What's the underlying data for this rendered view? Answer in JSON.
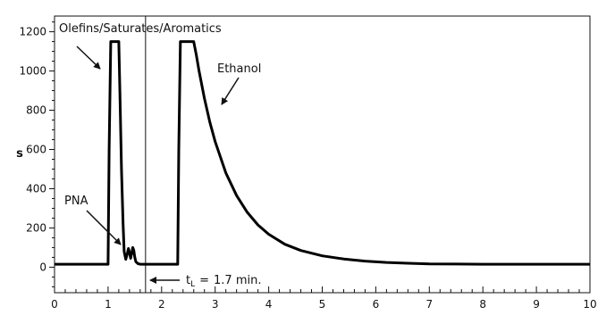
{
  "chart_data": {
    "type": "line",
    "title": "",
    "xlabel": "",
    "ylabel": "s",
    "xlim": [
      0,
      10
    ],
    "ylim": [
      -130,
      1280
    ],
    "x_ticks": [
      0,
      1,
      2,
      3,
      4,
      5,
      6,
      7,
      8,
      9,
      10
    ],
    "y_ticks": [
      0,
      200,
      400,
      600,
      800,
      1000,
      1200
    ],
    "grid": false,
    "series": [
      {
        "name": "",
        "x": [
          0,
          1.0,
          1.02,
          1.05,
          1.2,
          1.22,
          1.25,
          1.28,
          1.3,
          1.33,
          1.36,
          1.38,
          1.4,
          1.42,
          1.44,
          1.46,
          1.48,
          1.5,
          1.52,
          1.56,
          1.6,
          1.7,
          2.3,
          2.32,
          2.35,
          2.6,
          2.65,
          2.7,
          2.8,
          2.9,
          3.0,
          3.2,
          3.4,
          3.6,
          3.8,
          4.0,
          4.3,
          4.6,
          5.0,
          5.4,
          5.8,
          6.2,
          6.6,
          7.0,
          7.5,
          8.0,
          10.0
        ],
        "y": [
          15,
          15,
          600,
          1150,
          1150,
          900,
          500,
          220,
          80,
          40,
          70,
          95,
          75,
          45,
          70,
          100,
          85,
          50,
          28,
          18,
          15,
          15,
          15,
          600,
          1150,
          1150,
          1080,
          1000,
          860,
          740,
          640,
          480,
          365,
          280,
          215,
          168,
          117,
          85,
          58,
          42,
          31,
          24,
          20,
          17,
          16,
          15,
          15
        ]
      }
    ],
    "vertical_line": {
      "x": 1.7
    },
    "annotations": [
      {
        "text": "Olefins/Saturates/Aromatics"
      },
      {
        "text": "Ethanol"
      },
      {
        "text": "PNA"
      },
      {
        "text": "1.7 min.",
        "prefix": "t",
        "subscript": "L",
        "operator": "="
      }
    ]
  }
}
